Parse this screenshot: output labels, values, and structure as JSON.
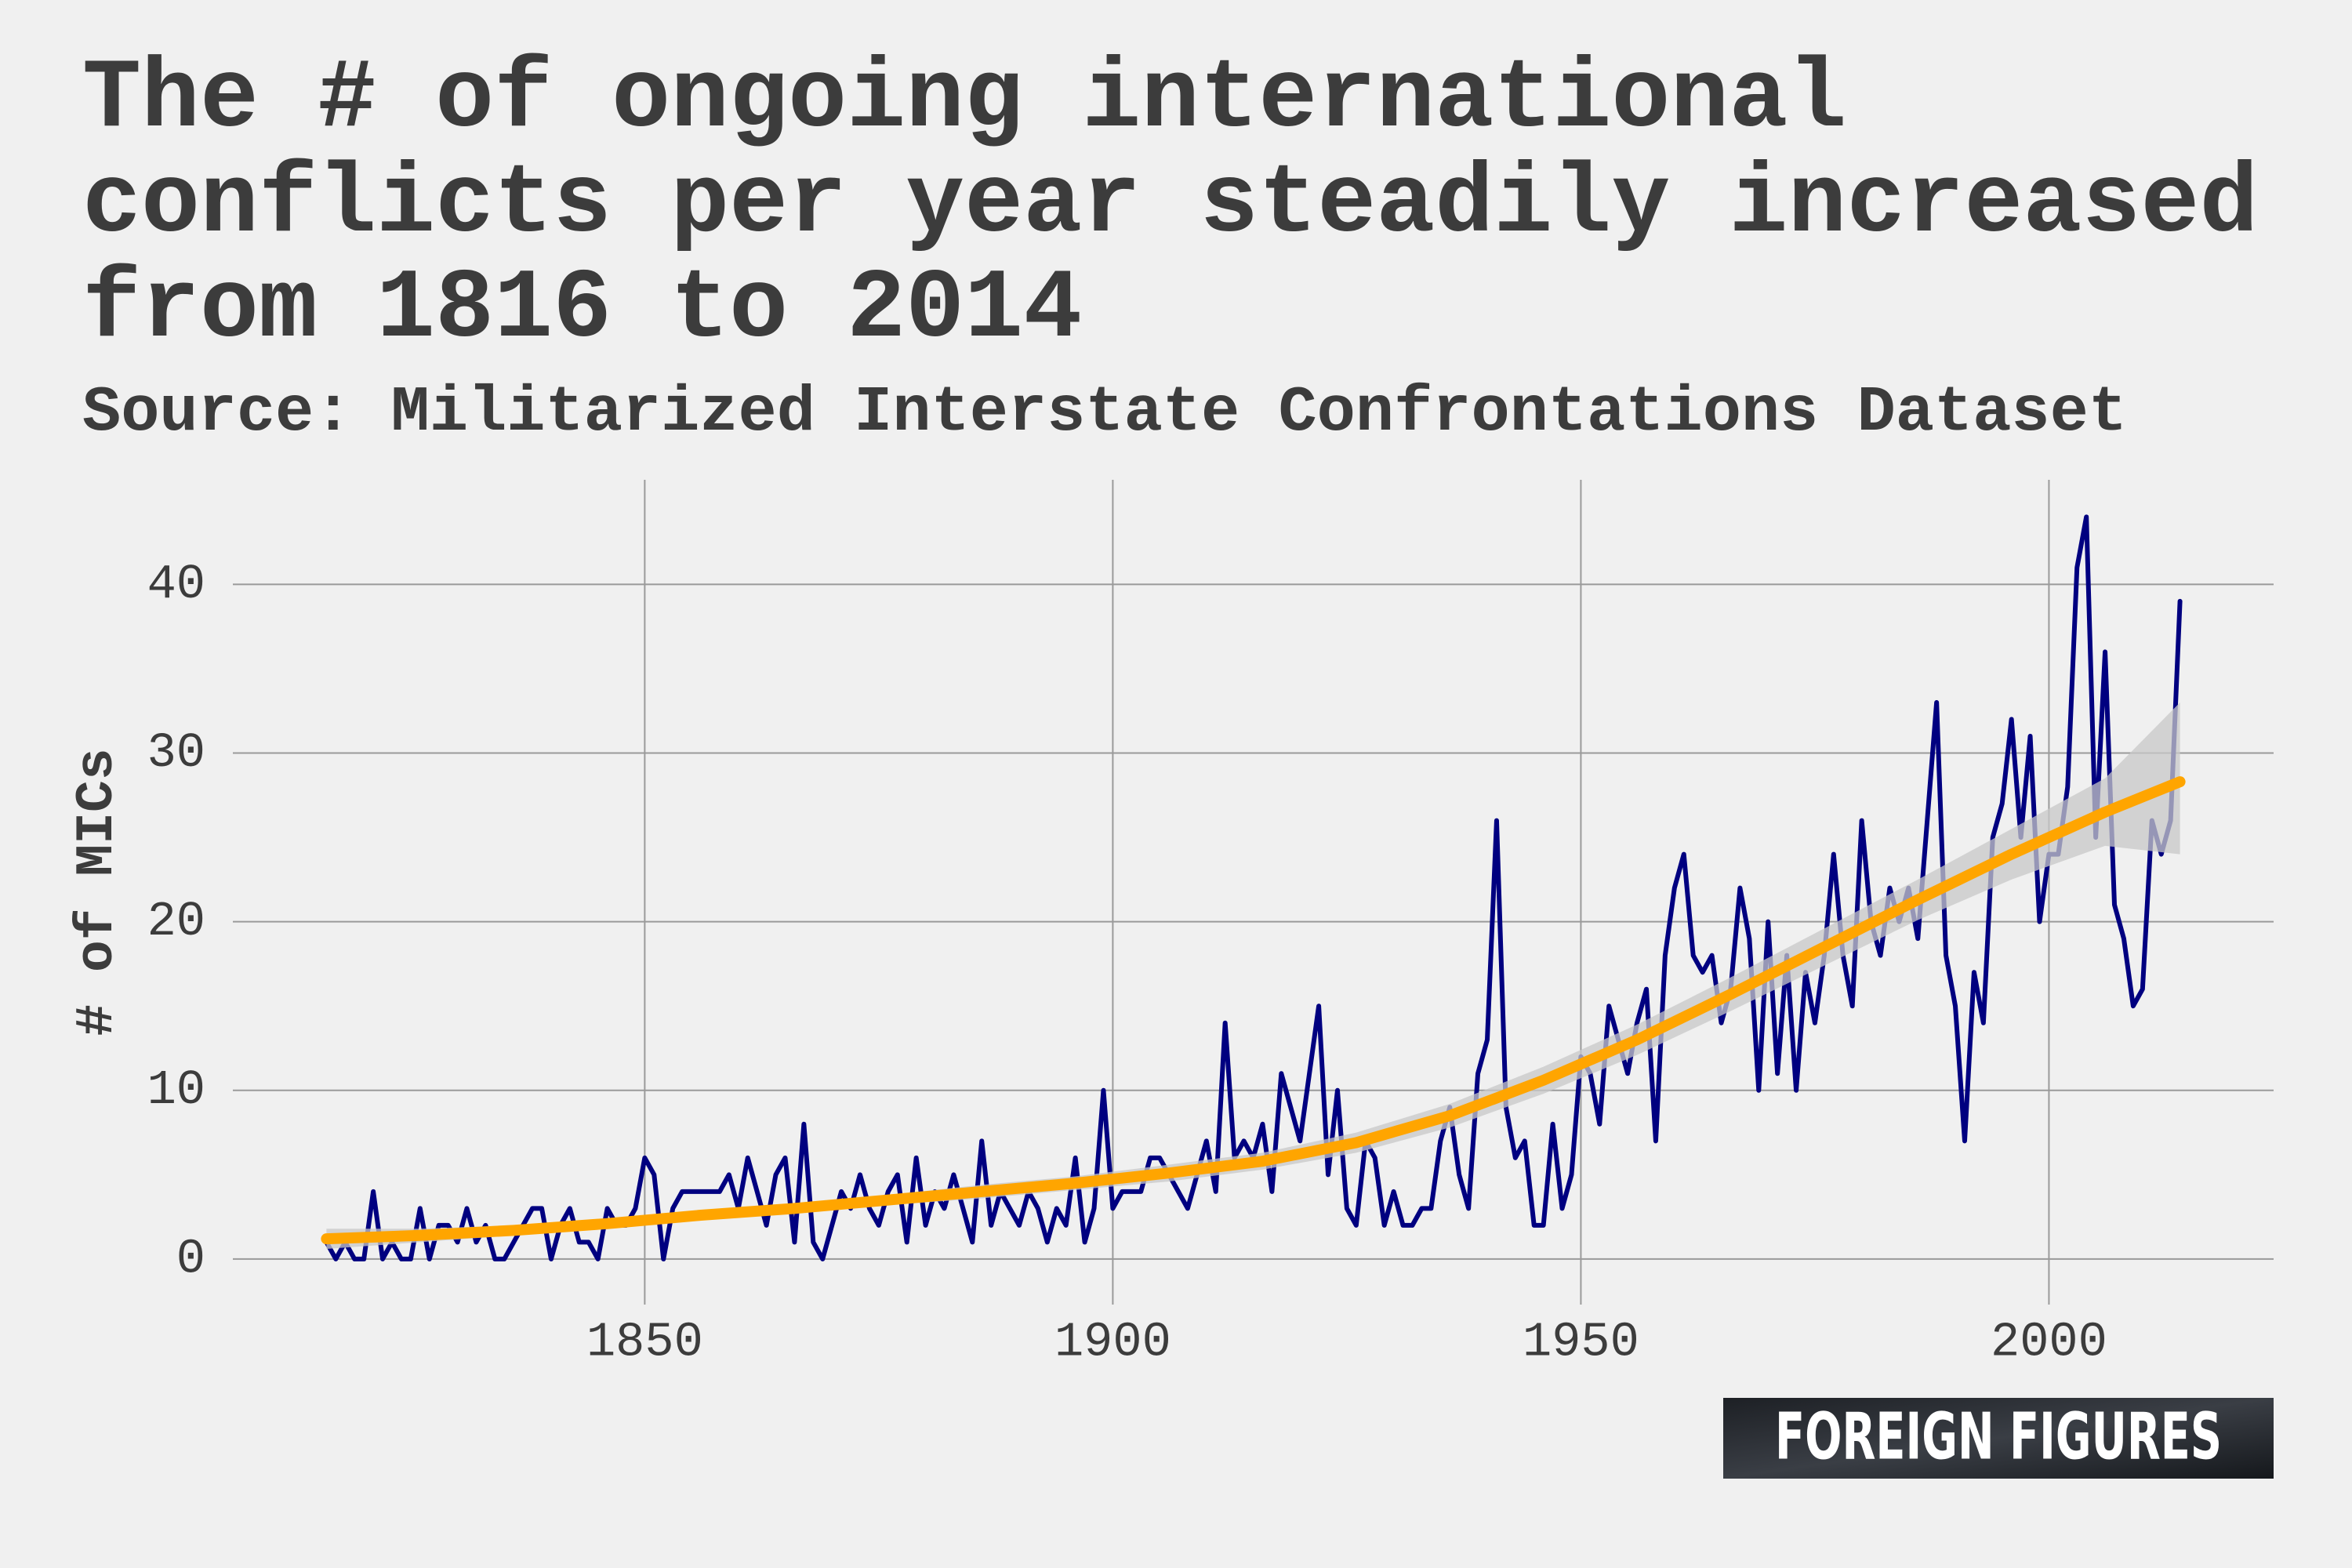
{
  "chart_data": {
    "type": "line",
    "title": "The # of ongoing international conflicts per year steadily increased from 1816 to 2014",
    "subtitle": "Source: Militarized Interstate Confrontations Dataset",
    "y_label": "# of MICs",
    "xlim": [
      1806,
      2024
    ],
    "xticks": [
      1850,
      1900,
      1950,
      2000
    ],
    "ylim": [
      -2.7,
      46.2
    ],
    "yticks": [
      0,
      10,
      20,
      30,
      40
    ],
    "grid": true,
    "series": [
      {
        "color": "#000080",
        "x_start": 1816,
        "values": [
          1,
          0,
          1,
          0,
          0,
          4,
          0,
          1,
          0,
          0,
          3,
          0,
          2,
          2,
          1,
          3,
          1,
          2,
          0,
          0,
          1,
          2,
          3,
          3,
          0,
          2,
          3,
          1,
          1,
          0,
          3,
          2,
          2,
          3,
          6,
          5,
          0,
          3,
          4,
          4,
          4,
          4,
          4,
          5,
          3,
          6,
          4,
          2,
          5,
          6,
          1,
          8,
          1,
          0,
          2,
          4,
          3,
          5,
          3,
          2,
          4,
          5,
          1,
          6,
          2,
          4,
          3,
          5,
          3,
          1,
          7,
          2,
          4,
          3,
          2,
          4,
          3,
          1,
          3,
          2,
          6,
          1,
          3,
          10,
          3,
          4,
          4,
          4,
          6,
          6,
          5,
          4,
          3,
          5,
          7,
          4,
          14,
          6,
          7,
          6,
          8,
          4,
          11,
          9,
          7,
          11,
          15,
          5,
          10,
          3,
          2,
          7,
          6,
          2,
          4,
          2,
          2,
          3,
          3,
          7,
          9,
          5,
          3,
          11,
          13,
          26,
          9,
          6,
          7,
          2,
          2,
          8,
          3,
          5,
          12,
          11,
          8,
          15,
          13,
          11,
          14,
          16,
          7,
          18,
          22,
          24,
          18,
          17,
          18,
          14,
          16,
          22,
          19,
          10,
          20,
          11,
          18,
          10,
          17,
          14,
          18,
          24,
          18,
          15,
          26,
          20,
          18,
          22,
          20,
          22,
          19,
          26,
          33,
          18,
          15,
          7,
          17,
          14,
          25,
          27,
          32,
          25,
          31,
          20,
          24,
          24,
          28,
          41,
          44,
          25,
          36,
          21,
          19,
          15,
          16,
          26,
          24,
          26,
          39
        ]
      },
      {
        "color": "#ffa500",
        "band_color": "#c8c8c8",
        "x": [
          1816,
          1826,
          1836,
          1846,
          1856,
          1866,
          1876,
          1886,
          1896,
          1906,
          1916,
          1926,
          1936,
          1946,
          1956,
          1966,
          1976,
          1986,
          1996,
          2006,
          2014
        ],
        "values": [
          1.2,
          1.4,
          1.7,
          2.1,
          2.6,
          3.0,
          3.5,
          4.0,
          4.5,
          5.1,
          5.8,
          6.9,
          8.5,
          10.6,
          13.0,
          15.7,
          18.5,
          21.3,
          24.0,
          26.5,
          28.3
        ],
        "lower": [
          0.6,
          1.0,
          1.4,
          1.8,
          2.3,
          2.7,
          3.2,
          3.6,
          4.1,
          4.6,
          5.3,
          6.3,
          7.8,
          9.8,
          12.1,
          14.7,
          17.4,
          20.1,
          22.5,
          24.5,
          24.0
        ],
        "upper": [
          1.8,
          1.8,
          2.0,
          2.4,
          2.9,
          3.3,
          3.8,
          4.4,
          4.9,
          5.6,
          6.3,
          7.5,
          9.2,
          11.4,
          13.9,
          16.7,
          19.6,
          22.5,
          25.5,
          28.5,
          33.0
        ]
      }
    ],
    "logo": "FOREIGN FIGURES"
  }
}
